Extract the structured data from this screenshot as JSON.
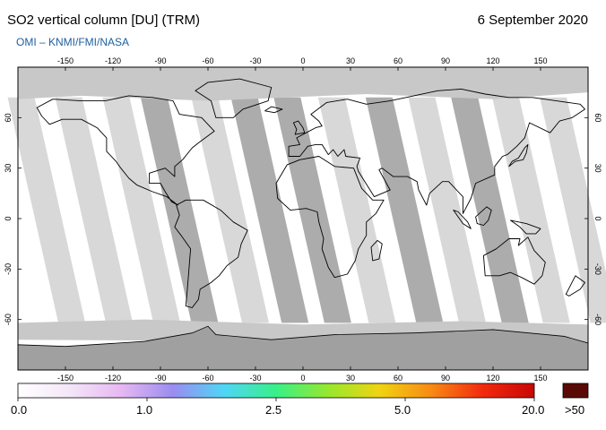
{
  "header": {
    "title": "SO2 vertical column [DU] (TRM)",
    "date": "6 September 2020",
    "credit": "OMI  –  KNMI/FMI/NASA"
  },
  "map": {
    "projection": "equirectangular",
    "lon_ticks": [
      -150,
      -120,
      -90,
      -60,
      -30,
      0,
      30,
      60,
      90,
      120,
      150
    ],
    "lat_ticks": [
      -60,
      -30,
      0,
      30,
      60
    ],
    "background_color": "#ffffff",
    "swath_colors": [
      "#d6d6d6",
      "#a8a8a8"
    ],
    "polar_color": "#c8c8c8",
    "antarctic_color": "#a0a0a0",
    "coastline_color": "#000000"
  },
  "colorbar": {
    "tick_labels": [
      "0.0",
      "1.0",
      "2.5",
      "5.0",
      "20.0"
    ],
    "tick_values": [
      0,
      1,
      2.5,
      5,
      20
    ],
    "overflow_label": ">50",
    "overflow_color": "#5a0a05",
    "gradient_stops": [
      "#ffffff",
      "#f4e6f8",
      "#e6b8f2",
      "#9a8cf0",
      "#4fd6f6",
      "#38f088",
      "#96e82e",
      "#f0d412",
      "#f88a14",
      "#f22a0e",
      "#c80606"
    ]
  }
}
